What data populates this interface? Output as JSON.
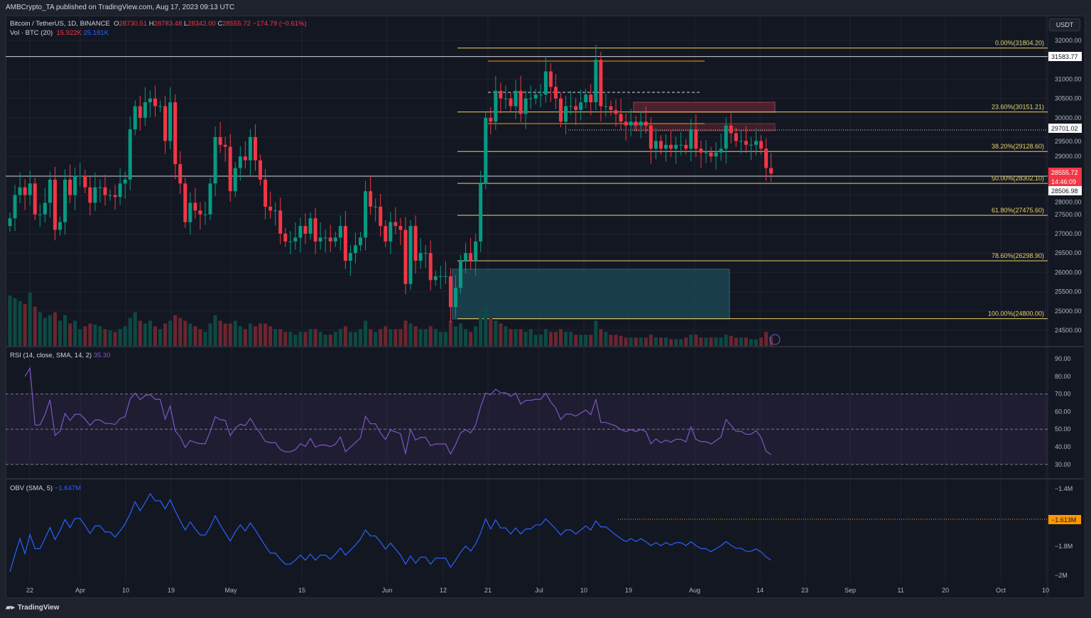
{
  "header": {
    "published": "AMBCrypto_TA published on TradingView.com, Aug 17, 2023 09:13 UTC"
  },
  "legend": {
    "symbol": "Bitcoin / TetherUS, 1D, BINANCE",
    "o_label": "O",
    "o": "28730.51",
    "h_label": "H",
    "h": "28783.48",
    "l_label": "L",
    "l": "28342.00",
    "c_label": "C",
    "c": "28555.72",
    "change": "−174.79 (−0.61%)",
    "vol_label": "Vol · BTC (20)",
    "vol": "15.922K",
    "vol_ma": "25.181K"
  },
  "rsi": {
    "label": "RSI (14, close, SMA, 14, 2)",
    "value": "35.30",
    "ticks": [
      "90.00",
      "80.00",
      "70.00",
      "60.00",
      "50.00",
      "40.00",
      "30.00"
    ]
  },
  "obv": {
    "label": "OBV (SMA, 5)",
    "value": "−1.647M",
    "ticks": [
      "−1.4M",
      "−1.8M",
      "−2M"
    ],
    "marker": "−1.613M"
  },
  "currency": "USDT",
  "price_axis": {
    "ticks": [
      "32000.00",
      "31000.00",
      "30500.00",
      "30000.00",
      "29500.00",
      "29000.00",
      "28000.00",
      "27500.00",
      "27000.00",
      "26500.00",
      "26000.00",
      "25500.00",
      "25000.00",
      "24500.00"
    ],
    "labels": {
      "level1": "31583.77",
      "level2": "29701.02",
      "last": "28555.72",
      "countdown": "14:46:09",
      "level3": "28506.98"
    }
  },
  "time_axis": [
    "22",
    "Apr",
    "10",
    "19",
    "May",
    "15",
    "Jun",
    "12",
    "21",
    "Jul",
    "10",
    "19",
    "Aug",
    "14",
    "23",
    "Sep",
    "11",
    "20",
    "Oct",
    "10"
  ],
  "fib": [
    {
      "label": "0.00%(31804.20)",
      "price": 31804.2
    },
    {
      "label": "23.60%(30151.21)",
      "price": 30151.21
    },
    {
      "label": "38.20%(29128.60)",
      "price": 29128.6
    },
    {
      "label": "50.00%(28302.10)",
      "price": 28302.1
    },
    {
      "label": "61.80%(27475.60)",
      "price": 27475.6
    },
    {
      "label": "78.60%(26298.90)",
      "price": 26298.9
    },
    {
      "label": "100.00%(24800.00)",
      "price": 24800
    }
  ],
  "colors": {
    "up": "#089981",
    "down": "#f23645",
    "fib": "#e8d26a",
    "rsi": "#7e57c2",
    "obv": "#2962ff",
    "bg": "#131722"
  },
  "footer": {
    "brand": "TradingView"
  },
  "chart_data": {
    "type": "candlestick",
    "title": "Bitcoin / TetherUS, 1D, BINANCE",
    "start_date": "2023-03-18",
    "ylim": [
      24300,
      32300
    ],
    "closes": [
      27400,
      28000,
      28200,
      28000,
      28300,
      27500,
      27500,
      27800,
      28400,
      27100,
      27300,
      28400,
      28000,
      28500,
      28500,
      28200,
      27800,
      28200,
      28200,
      28000,
      28000,
      27950,
      28300,
      28400,
      29700,
      30300,
      30000,
      30400,
      30500,
      30300,
      30300,
      29400,
      30400,
      28800,
      28300,
      27300,
      27800,
      27600,
      27500,
      27500,
      28300,
      29500,
      29300,
      29250,
      28100,
      28700,
      29000,
      28900,
      29500,
      28900,
      28400,
      27700,
      27600,
      27600,
      27000,
      26800,
      26800,
      26900,
      27200,
      27000,
      27400,
      26800,
      26900,
      26900,
      26800,
      26900,
      27200,
      26300,
      26500,
      26700,
      26900,
      28100,
      27700,
      27700,
      27200,
      26800,
      27300,
      27200,
      27100,
      25700,
      27200,
      26300,
      26500,
      26500,
      25800,
      25900,
      25900,
      25900,
      25100,
      25600,
      26300,
      26500,
      26300,
      26800,
      28300,
      30000,
      29900,
      30700,
      30500,
      30500,
      30300,
      30700,
      30100,
      30500,
      30500,
      30600,
      30600,
      31200,
      30800,
      30500,
      29900,
      30300,
      30300,
      30200,
      30400,
      30600,
      30400,
      31500,
      30300,
      30300,
      30200,
      30100,
      29900,
      29800,
      29900,
      29800,
      29900,
      29800,
      29200,
      29400,
      29200,
      29300,
      29200,
      29300,
      29300,
      29200,
      29700,
      29200,
      29100,
      29100,
      29000,
      29100,
      29200,
      29800,
      29600,
      29400,
      29400,
      29300,
      29300,
      29400,
      29200,
      28700,
      28555.72
    ],
    "volume_k": [
      90,
      85,
      80,
      75,
      95,
      70,
      60,
      50,
      55,
      60,
      45,
      55,
      40,
      45,
      30,
      35,
      40,
      38,
      35,
      30,
      28,
      25,
      30,
      35,
      50,
      60,
      45,
      40,
      45,
      35,
      30,
      40,
      45,
      55,
      50,
      45,
      40,
      35,
      30,
      25,
      40,
      55,
      45,
      40,
      40,
      45,
      35,
      30,
      40,
      35,
      40,
      40,
      35,
      30,
      30,
      25,
      25,
      20,
      25,
      25,
      30,
      30,
      25,
      20,
      20,
      25,
      30,
      35,
      25,
      25,
      30,
      45,
      30,
      25,
      30,
      35,
      30,
      30,
      30,
      45,
      40,
      35,
      30,
      30,
      35,
      30,
      25,
      25,
      45,
      35,
      40,
      30,
      25,
      35,
      55,
      70,
      50,
      45,
      40,
      35,
      30,
      30,
      30,
      25,
      30,
      20,
      20,
      30,
      25,
      25,
      30,
      25,
      25,
      20,
      20,
      20,
      20,
      45,
      30,
      25,
      20,
      20,
      18,
      15,
      15,
      15,
      15,
      15,
      20,
      15,
      15,
      15,
      12,
      12,
      12,
      15,
      20,
      20,
      15,
      15,
      15,
      15,
      15,
      20,
      18,
      15,
      15,
      15,
      12,
      12,
      15,
      25,
      16
    ]
  }
}
